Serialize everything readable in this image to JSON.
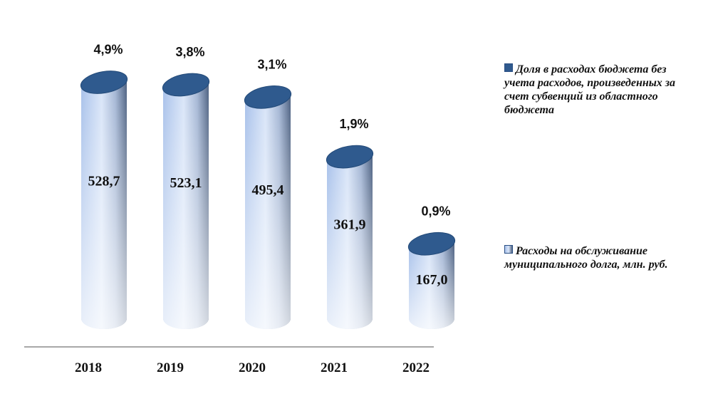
{
  "chart_data": {
    "type": "bar",
    "categories": [
      "2018",
      "2019",
      "2020",
      "2021",
      "2022"
    ],
    "series": [
      {
        "name": "Расходы на обслуживание муниципального долга, млн. руб.",
        "values": [
          528.7,
          523.1,
          495.4,
          361.9,
          167.0
        ],
        "labels": [
          "528,7",
          "523,1",
          "495,4",
          "361,9",
          "167,0"
        ]
      },
      {
        "name": "Доля в расходах бюджета без учета расходов, произведенных за счет субвенций из областного бюджета",
        "values": [
          4.9,
          3.8,
          3.1,
          1.9,
          0.9
        ],
        "labels": [
          "4,9%",
          "3,8%",
          "3,1%",
          "1,9%",
          "0,9%"
        ]
      }
    ],
    "legend_position": "right",
    "grid": false
  },
  "legend": {
    "share": "Доля в расходах бюджета без учета расходов, произведенных за счет субвенций из областного бюджета",
    "expenses": "Расходы на обслуживание муниципального долга, млн. руб."
  },
  "colors": {
    "cylinder_top": "#2f5a8e",
    "cylinder_body_light": "#ffffff",
    "cylinder_body_mid": "#b9cdef",
    "cylinder_body_dark": "#5d7396",
    "axis": "#8c8c8c"
  }
}
